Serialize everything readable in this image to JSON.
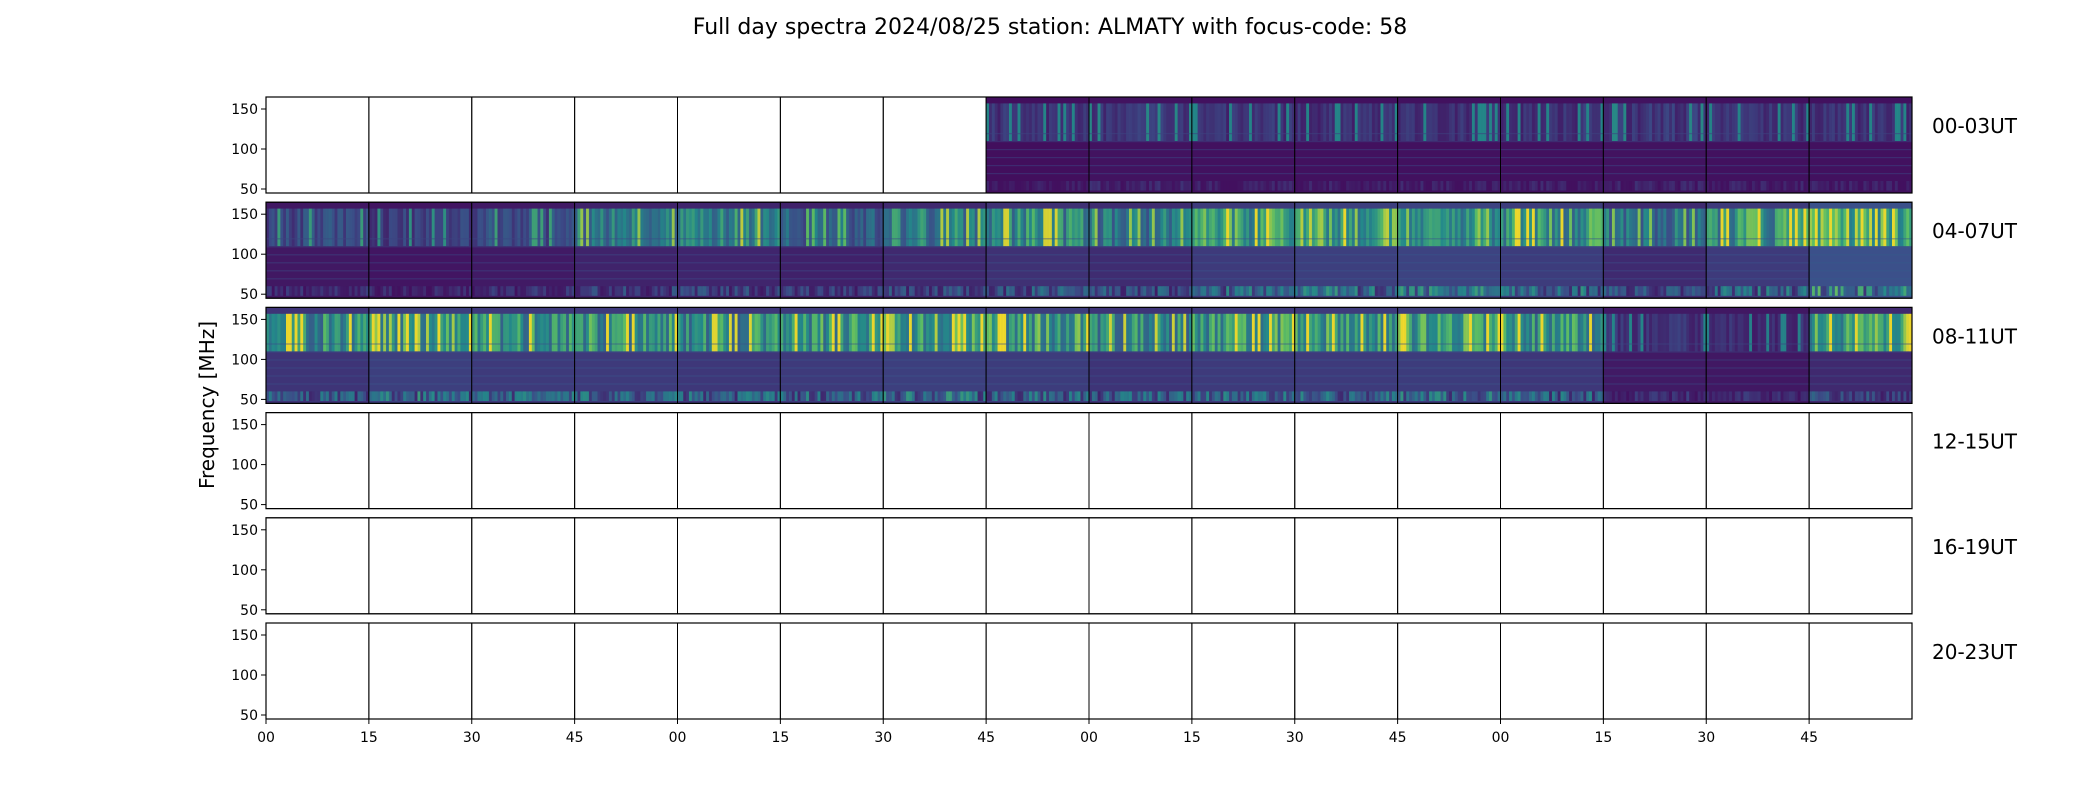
{
  "chart_data": {
    "type": "heatmap",
    "title": "Full day spectra 2024/08/25 station: ALMATY with focus-code: 58",
    "ylabel": "Frequency [MHz]",
    "xlabel": "",
    "ylim": [
      45,
      165
    ],
    "y_ticks": [
      50,
      100,
      150
    ],
    "x_tick_labels": [
      "00",
      "15",
      "30",
      "45",
      "00",
      "15",
      "30",
      "45",
      "00",
      "15",
      "30",
      "45",
      "00",
      "15",
      "30",
      "45"
    ],
    "columns_per_row": 16,
    "colormap": "viridis",
    "rows": [
      {
        "label": "00-03UT",
        "panels_with_data": [
          7,
          8,
          9,
          10,
          11,
          12,
          13,
          14,
          15
        ],
        "intensity": [
          0,
          0,
          0,
          0,
          0,
          0,
          0,
          0.12,
          0.16,
          0.14,
          0.14,
          0.14,
          0.14,
          0.16,
          0.14,
          0.14
        ],
        "high_band_intensity": [
          0,
          0,
          0,
          0,
          0,
          0,
          0,
          0.2,
          0.22,
          0.2,
          0.2,
          0.2,
          0.2,
          0.22,
          0.2,
          0.2
        ]
      },
      {
        "label": "04-07UT",
        "panels_with_data": [
          0,
          1,
          2,
          3,
          4,
          5,
          6,
          7,
          8,
          9,
          10,
          11,
          12,
          13,
          14,
          15
        ],
        "intensity": [
          0.2,
          0.18,
          0.22,
          0.3,
          0.32,
          0.28,
          0.35,
          0.42,
          0.38,
          0.5,
          0.55,
          0.58,
          0.52,
          0.36,
          0.5,
          0.7
        ],
        "high_band_intensity": [
          0.3,
          0.25,
          0.32,
          0.55,
          0.62,
          0.45,
          0.6,
          0.66,
          0.55,
          0.78,
          0.85,
          0.8,
          0.72,
          0.52,
          0.72,
          0.95
        ]
      },
      {
        "label": "08-11UT",
        "panels_with_data": [
          0,
          1,
          2,
          3,
          4,
          5,
          6,
          7,
          8,
          9,
          10,
          11,
          12,
          13,
          14,
          15
        ],
        "intensity": [
          0.45,
          0.55,
          0.5,
          0.5,
          0.48,
          0.5,
          0.55,
          0.52,
          0.45,
          0.5,
          0.5,
          0.52,
          0.48,
          0.22,
          0.2,
          0.35
        ],
        "high_band_intensity": [
          0.7,
          0.82,
          0.72,
          0.72,
          0.68,
          0.72,
          0.82,
          0.78,
          0.65,
          0.75,
          0.74,
          0.76,
          0.72,
          0.2,
          0.18,
          0.9
        ]
      },
      {
        "label": "12-15UT",
        "panels_with_data": [],
        "intensity": [
          0,
          0,
          0,
          0,
          0,
          0,
          0,
          0,
          0,
          0,
          0,
          0,
          0,
          0,
          0,
          0
        ],
        "high_band_intensity": [
          0,
          0,
          0,
          0,
          0,
          0,
          0,
          0,
          0,
          0,
          0,
          0,
          0,
          0,
          0,
          0
        ]
      },
      {
        "label": "16-19UT",
        "panels_with_data": [],
        "intensity": [
          0,
          0,
          0,
          0,
          0,
          0,
          0,
          0,
          0,
          0,
          0,
          0,
          0,
          0,
          0,
          0
        ],
        "high_band_intensity": [
          0,
          0,
          0,
          0,
          0,
          0,
          0,
          0,
          0,
          0,
          0,
          0,
          0,
          0,
          0,
          0
        ]
      },
      {
        "label": "20-23UT",
        "panels_with_data": [],
        "intensity": [
          0,
          0,
          0,
          0,
          0,
          0,
          0,
          0,
          0,
          0,
          0,
          0,
          0,
          0,
          0,
          0
        ],
        "high_band_intensity": [
          0,
          0,
          0,
          0,
          0,
          0,
          0,
          0,
          0,
          0,
          0,
          0,
          0,
          0,
          0,
          0
        ]
      }
    ]
  }
}
